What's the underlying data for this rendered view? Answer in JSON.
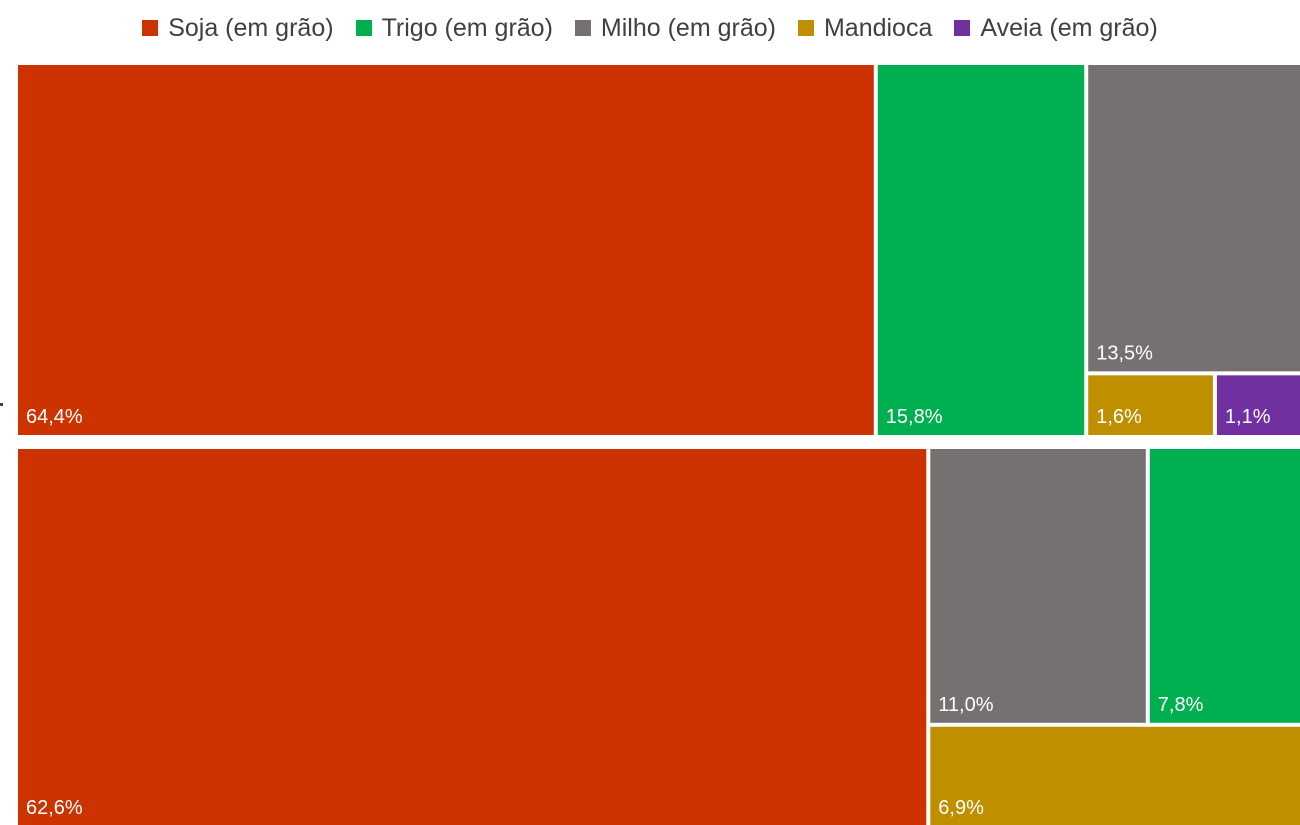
{
  "chart_data": {
    "type": "treemap",
    "legend": {
      "placement": "top",
      "entries": [
        {
          "name": "Soja (em grão)",
          "color": "#cc3300"
        },
        {
          "name": "Trigo (em grão)",
          "color": "#00b050"
        },
        {
          "name": "Milho (em grão)",
          "color": "#767171"
        },
        {
          "name": "Mandioca",
          "color": "#bf8f00"
        },
        {
          "name": "Aveia (em grão)",
          "color": "#7030a0"
        }
      ]
    },
    "groups": [
      {
        "items": [
          {
            "name": "Soja (em grão)",
            "value": 64.4,
            "label": "64,4%"
          },
          {
            "name": "Trigo (em grão)",
            "value": 15.8,
            "label": "15,8%"
          },
          {
            "name": "Milho (em grão)",
            "value": 13.5,
            "label": "13,5%"
          },
          {
            "name": "Mandioca",
            "value": 1.6,
            "label": "1,6%"
          },
          {
            "name": "Aveia (em grão)",
            "value": 1.1,
            "label": "1,1%"
          }
        ]
      },
      {
        "items": [
          {
            "name": "Soja (em grão)",
            "value": 62.6,
            "label": "62,6%"
          },
          {
            "name": "Milho (em grão)",
            "value": 11.0,
            "label": "11,0%"
          },
          {
            "name": "Trigo (em grão)",
            "value": 7.8,
            "label": "7,8%"
          },
          {
            "name": "Mandioca",
            "value": 6.9,
            "label": "6,9%"
          }
        ]
      }
    ]
  }
}
